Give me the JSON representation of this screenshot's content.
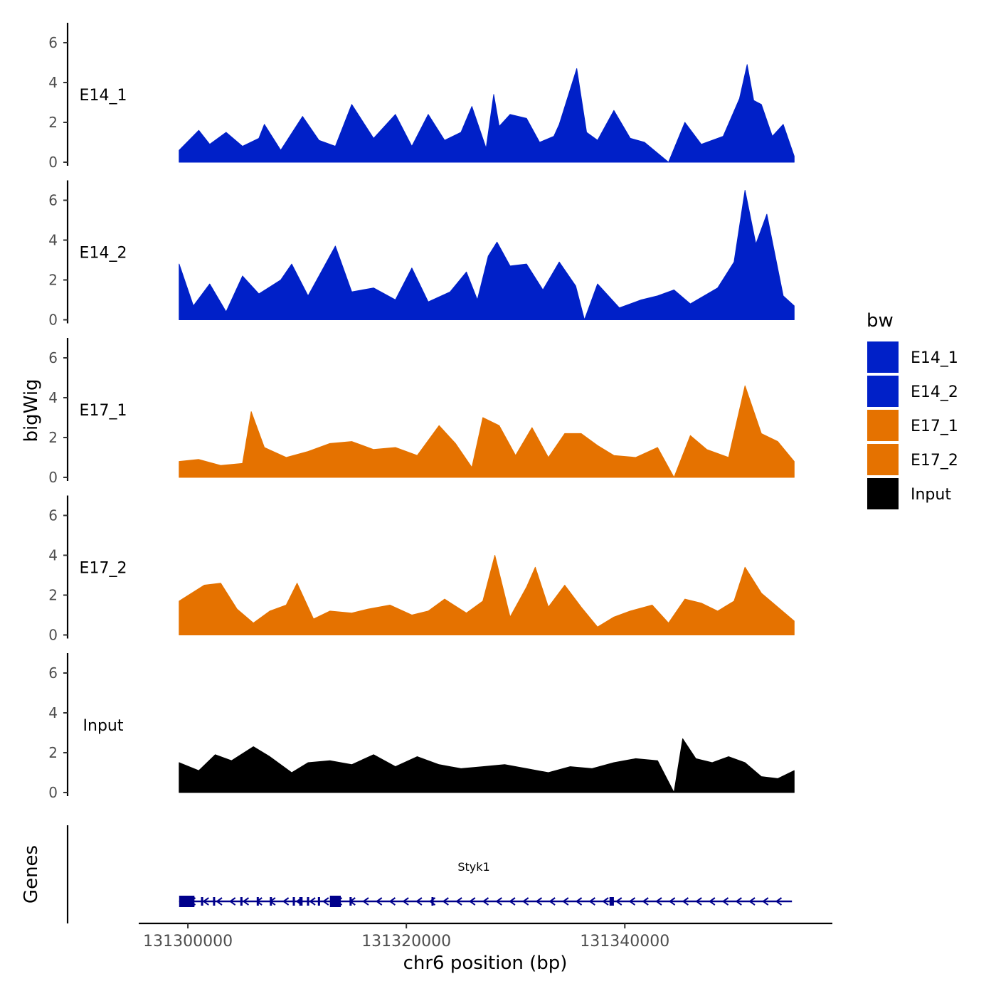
{
  "chart_data": {
    "type": "area",
    "title": "",
    "ylabel": "bigWig",
    "xlabel": "chr6 position (bp)",
    "xlim": [
      131295500,
      131359000
    ],
    "ylim": [
      0,
      7
    ],
    "y_ticks": [
      "0",
      "2",
      "4",
      "6"
    ],
    "x_ticks": [
      {
        "value": 131300000,
        "label": "131300000"
      },
      {
        "value": 131320000,
        "label": "131320000"
      },
      {
        "value": 131340000,
        "label": "131340000"
      }
    ],
    "legend": {
      "title": "bw",
      "position": "right",
      "entries": [
        {
          "label": "E14_1",
          "color": "#0020C8"
        },
        {
          "label": "E14_2",
          "color": "#0020C8"
        },
        {
          "label": "E17_1",
          "color": "#E57200"
        },
        {
          "label": "E17_2",
          "color": "#E57200"
        },
        {
          "label": "Input",
          "color": "#000000"
        }
      ]
    },
    "tracks": [
      {
        "name": "E14_1",
        "color": "#0020C8",
        "x": [
          131299200,
          131301000,
          131302000,
          131303500,
          131305000,
          131306500,
          131307000,
          131308500,
          131310500,
          131312000,
          131313500,
          131315000,
          131317000,
          131319000,
          131320500,
          131322000,
          131323500,
          131325000,
          131326000,
          131327300,
          131328000,
          131328500,
          131329500,
          131331000,
          131332200,
          131333500,
          131334000,
          131335600,
          131336500,
          131337500,
          131339000,
          131340500,
          131341800,
          131344000,
          131345500,
          131347000,
          131349000,
          131350500,
          131351200,
          131351800,
          131352500,
          131353500,
          131354500,
          131355500
        ],
        "y": [
          0.6,
          1.6,
          0.9,
          1.5,
          0.8,
          1.2,
          1.9,
          0.6,
          2.3,
          1.1,
          0.8,
          2.9,
          1.2,
          2.4,
          0.8,
          2.4,
          1.1,
          1.5,
          2.8,
          0.7,
          3.4,
          1.8,
          2.4,
          2.2,
          1.0,
          1.3,
          1.9,
          4.7,
          1.5,
          1.1,
          2.6,
          1.2,
          1.0,
          0.0,
          2.0,
          0.9,
          1.3,
          3.2,
          4.9,
          3.1,
          2.9,
          1.3,
          1.9,
          0.3
        ]
      },
      {
        "name": "E14_2",
        "color": "#0020C8",
        "x": [
          131299200,
          131300500,
          131302000,
          131303500,
          131305000,
          131306500,
          131308500,
          131309500,
          131311000,
          131313500,
          131315000,
          131317000,
          131319000,
          131320500,
          131322000,
          131324000,
          131325500,
          131326500,
          131327500,
          131328300,
          131329500,
          131331000,
          131332500,
          131334000,
          131335500,
          131336300,
          131337500,
          131339500,
          131341500,
          131343000,
          131344500,
          131346000,
          131348500,
          131350000,
          131351000,
          131352000,
          131353000,
          131354500,
          131355500
        ],
        "y": [
          2.8,
          0.7,
          1.8,
          0.4,
          2.2,
          1.3,
          2.0,
          2.8,
          1.2,
          3.7,
          1.4,
          1.6,
          1.0,
          2.6,
          0.9,
          1.4,
          2.4,
          1.0,
          3.2,
          3.9,
          2.7,
          2.8,
          1.5,
          2.9,
          1.7,
          0.0,
          1.8,
          0.6,
          1.0,
          1.2,
          1.5,
          0.8,
          1.6,
          2.9,
          6.5,
          3.8,
          5.3,
          1.2,
          0.7
        ]
      },
      {
        "name": "E17_1",
        "color": "#E57200",
        "x": [
          131299200,
          131301000,
          131303000,
          131305000,
          131305800,
          131307000,
          131309000,
          131311000,
          131313000,
          131315000,
          131317000,
          131319000,
          131321000,
          131323000,
          131324500,
          131326000,
          131327000,
          131328500,
          131330000,
          131331500,
          131333000,
          131334500,
          131336000,
          131337500,
          131339000,
          131341000,
          131343000,
          131344500,
          131346000,
          131347500,
          131349500,
          131351000,
          131352500,
          131354000,
          131355500
        ],
        "y": [
          0.8,
          0.9,
          0.6,
          0.7,
          3.3,
          1.5,
          1.0,
          1.3,
          1.7,
          1.8,
          1.4,
          1.5,
          1.1,
          2.6,
          1.7,
          0.5,
          3.0,
          2.6,
          1.1,
          2.5,
          1.0,
          2.2,
          2.2,
          1.6,
          1.1,
          1.0,
          1.5,
          0.0,
          2.1,
          1.4,
          1.0,
          4.6,
          2.2,
          1.8,
          0.8
        ]
      },
      {
        "name": "E17_2",
        "color": "#E57200",
        "x": [
          131299200,
          131301500,
          131303000,
          131304500,
          131306000,
          131307500,
          131309000,
          131310000,
          131311500,
          131313000,
          131315000,
          131316500,
          131318500,
          131320500,
          131322000,
          131323500,
          131325500,
          131327000,
          131328100,
          131329500,
          131331000,
          131331800,
          131333000,
          131334500,
          131336000,
          131337500,
          131339000,
          131340500,
          131342500,
          131344000,
          131345500,
          131347000,
          131348500,
          131350000,
          131351000,
          131352500,
          131354000,
          131355500
        ],
        "y": [
          1.7,
          2.5,
          2.6,
          1.3,
          0.6,
          1.2,
          1.5,
          2.6,
          0.8,
          1.2,
          1.1,
          1.3,
          1.5,
          1.0,
          1.2,
          1.8,
          1.1,
          1.7,
          4.0,
          0.9,
          2.4,
          3.4,
          1.4,
          2.5,
          1.4,
          0.4,
          0.9,
          1.2,
          1.5,
          0.6,
          1.8,
          1.6,
          1.2,
          1.7,
          3.4,
          2.1,
          1.4,
          0.7
        ]
      },
      {
        "name": "Input",
        "color": "#000000",
        "x": [
          131299200,
          131301000,
          131302500,
          131304000,
          131306000,
          131307500,
          131309500,
          131311000,
          131313000,
          131315000,
          131317000,
          131319000,
          131321000,
          131323000,
          131325000,
          131327000,
          131329000,
          131331000,
          131333000,
          131335000,
          131337000,
          131339000,
          131341000,
          131343000,
          131344500,
          131345300,
          131346500,
          131348000,
          131349500,
          131351000,
          131352500,
          131354000,
          131355500
        ],
        "y": [
          1.5,
          1.1,
          1.9,
          1.6,
          2.3,
          1.8,
          1.0,
          1.5,
          1.6,
          1.4,
          1.9,
          1.3,
          1.8,
          1.4,
          1.2,
          1.3,
          1.4,
          1.2,
          1.0,
          1.3,
          1.2,
          1.5,
          1.7,
          1.6,
          0.0,
          2.7,
          1.7,
          1.5,
          1.8,
          1.5,
          0.8,
          0.7,
          1.1
        ]
      }
    ],
    "genes_label": "Genes",
    "gene": {
      "name": "Styk1",
      "start": 131299200,
      "end": 131355300,
      "strand": "-",
      "color": "#00008B",
      "exons": [
        [
          131299200,
          131300600
        ],
        [
          131301200,
          131301400
        ],
        [
          131302300,
          131302450
        ],
        [
          131304800,
          131305000
        ],
        [
          131306300,
          131306450
        ],
        [
          131307500,
          131307650
        ],
        [
          131309600,
          131309800
        ],
        [
          131310200,
          131310500
        ],
        [
          131310900,
          131311100
        ],
        [
          131311900,
          131312100
        ],
        [
          131313000,
          131314000
        ],
        [
          131314800,
          131314950
        ],
        [
          131322300,
          131322450
        ],
        [
          131338600,
          131339000
        ]
      ]
    }
  }
}
